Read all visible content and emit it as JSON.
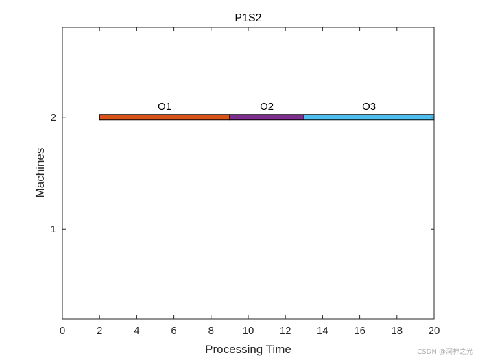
{
  "chart_data": {
    "type": "gantt",
    "title": "P1S2",
    "xlabel": "Processing Time",
    "ylabel": "Machines",
    "xlim": [
      0,
      20
    ],
    "ylim": [
      0.2,
      2.8
    ],
    "xticks": [
      0,
      2,
      4,
      6,
      8,
      10,
      12,
      14,
      16,
      18,
      20
    ],
    "yticks": [
      1,
      2
    ],
    "grid": false,
    "tasks": [
      {
        "name": "O1",
        "machine": 2,
        "start": 2,
        "end": 9,
        "color": "#d95319"
      },
      {
        "name": "O2",
        "machine": 2,
        "start": 9,
        "end": 13,
        "color": "#7e2f8e"
      },
      {
        "name": "O3",
        "machine": 2,
        "start": 13,
        "end": 20,
        "color": "#4dbeee"
      }
    ]
  },
  "watermark": "CSDN @润神之光"
}
